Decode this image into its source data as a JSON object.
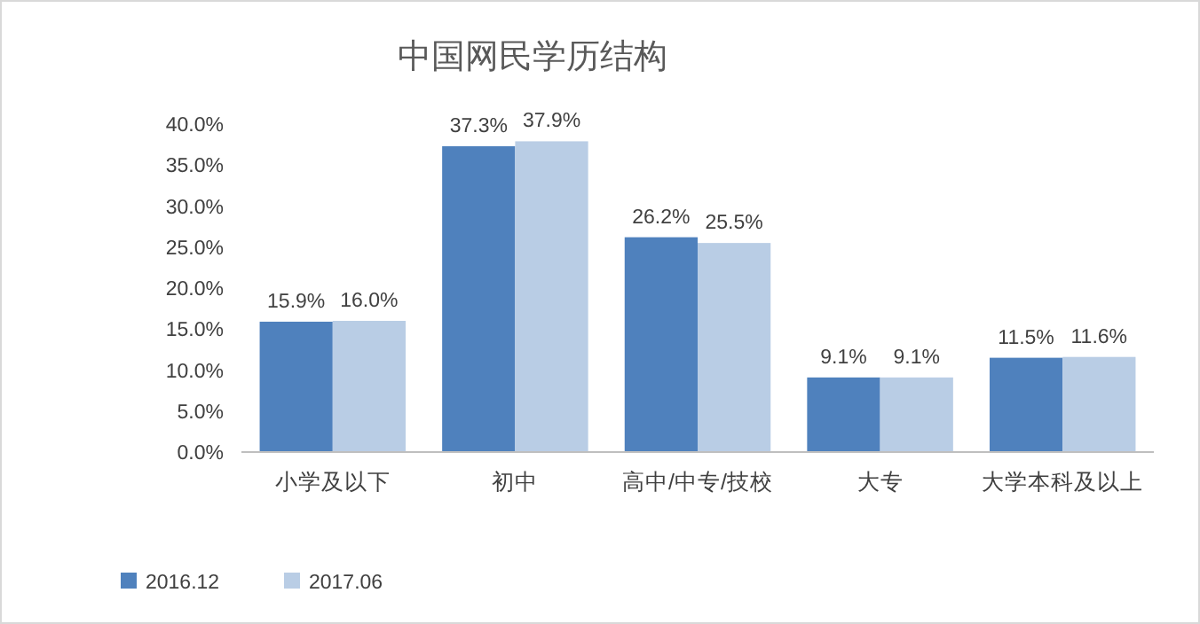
{
  "chart_data": {
    "type": "bar",
    "title": "中国网民学历结构",
    "categories": [
      "小学及以下",
      "初中",
      "高中/中专/技校",
      "大专",
      "大学本科及以上"
    ],
    "series": [
      {
        "name": "2016.12",
        "color": "#4f81bd",
        "values": [
          15.9,
          37.3,
          26.2,
          9.1,
          11.5
        ],
        "value_labels": [
          "15.9%",
          "37.3%",
          "26.2%",
          "9.1%",
          "11.5%"
        ]
      },
      {
        "name": "2017.06",
        "color": "#b9cde5",
        "values": [
          16.0,
          37.9,
          25.5,
          9.1,
          11.6
        ],
        "value_labels": [
          "16.0%",
          "37.9%",
          "25.5%",
          "9.1%",
          "11.6%"
        ]
      }
    ],
    "ylim": [
      0,
      40
    ],
    "yticks": [
      {
        "value": 0,
        "label": "0.0%"
      },
      {
        "value": 5,
        "label": "5.0%"
      },
      {
        "value": 10,
        "label": "10.0%"
      },
      {
        "value": 15,
        "label": "15.0%"
      },
      {
        "value": 20,
        "label": "20.0%"
      },
      {
        "value": 25,
        "label": "25.0%"
      },
      {
        "value": 30,
        "label": "30.0%"
      },
      {
        "value": 35,
        "label": "35.0%"
      },
      {
        "value": 40,
        "label": "40.0%"
      }
    ],
    "grid": false,
    "legend": "bottom left"
  }
}
